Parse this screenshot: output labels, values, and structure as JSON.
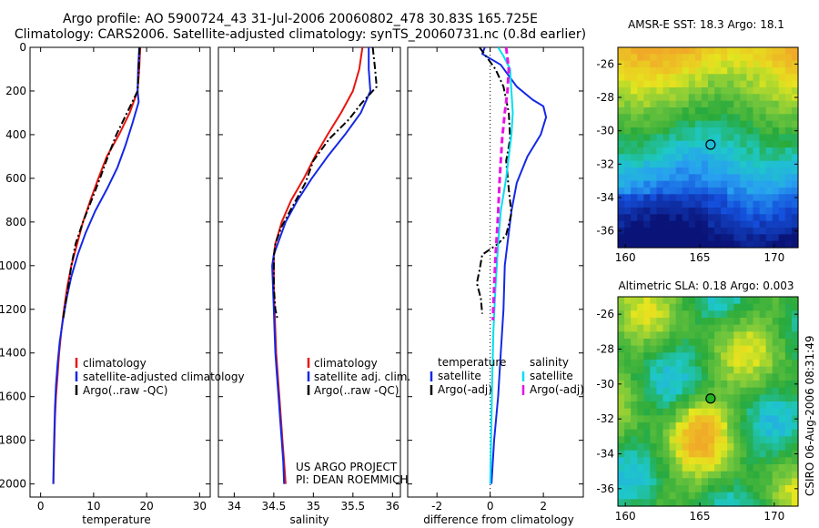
{
  "header": {
    "title_line1": "Argo profile: AO 5900724_43 31-Jul-2006 20060802_478 30.83S 165.725E",
    "title_line2": "Climatology: CARS2006. Satellite-adjusted climatology: synTS_20060731.nc (0.8d earlier)"
  },
  "colors": {
    "climatology": "#e8140f",
    "satellite": "#1428e6",
    "argo": "#000000",
    "salinity_satellite": "#00e0f0",
    "salinity_argo": "#e614e6"
  },
  "credit": {
    "line1": "US ARGO PROJECT",
    "line2": "PI: DEAN ROEMMICH"
  },
  "side_stamp": "CSIRO 06-Aug-2006 08:31:49",
  "chart_data": [
    {
      "type": "line",
      "id": "temperature",
      "xlabel": "temperature",
      "ylabel": "",
      "xlim": [
        -2,
        32
      ],
      "ylim": [
        2060,
        0
      ],
      "y_reversed": true,
      "xticks": [
        0,
        10,
        20,
        30
      ],
      "yticks": [
        0,
        200,
        400,
        600,
        800,
        1000,
        1200,
        1400,
        1600,
        1800,
        2000
      ],
      "legend": [
        "climatology",
        "satellite-adjusted climatology",
        "Argo(..raw -QC)"
      ],
      "legend_position": "lower-right",
      "series": [
        {
          "name": "climatology",
          "style": "solid",
          "color_key": "climatology",
          "points": [
            [
              18.8,
              0
            ],
            [
              18.6,
              100
            ],
            [
              18.3,
              200
            ],
            [
              16.8,
              300
            ],
            [
              14.8,
              400
            ],
            [
              12.5,
              500
            ],
            [
              10.9,
              600
            ],
            [
              9.4,
              700
            ],
            [
              8.0,
              800
            ],
            [
              6.9,
              900
            ],
            [
              5.8,
              1000
            ],
            [
              5.0,
              1100
            ],
            [
              4.4,
              1200
            ],
            [
              3.9,
              1300
            ],
            [
              3.5,
              1400
            ],
            [
              3.2,
              1500
            ],
            [
              2.9,
              1600
            ],
            [
              2.7,
              1700
            ],
            [
              2.6,
              1800
            ],
            [
              2.5,
              1900
            ],
            [
              2.4,
              2000
            ]
          ]
        },
        {
          "name": "satellite-adjusted climatology",
          "style": "solid",
          "color_key": "satellite",
          "points": [
            [
              18.6,
              0
            ],
            [
              18.4,
              100
            ],
            [
              18.3,
              200
            ],
            [
              18.5,
              250
            ],
            [
              17.3,
              350
            ],
            [
              16.0,
              450
            ],
            [
              14.5,
              550
            ],
            [
              12.5,
              650
            ],
            [
              10.3,
              750
            ],
            [
              8.5,
              850
            ],
            [
              7.0,
              950
            ],
            [
              5.8,
              1050
            ],
            [
              4.9,
              1150
            ],
            [
              4.2,
              1250
            ],
            [
              3.6,
              1350
            ],
            [
              3.2,
              1450
            ],
            [
              2.9,
              1550
            ],
            [
              2.7,
              1650
            ],
            [
              2.6,
              1750
            ],
            [
              2.5,
              1850
            ],
            [
              2.4,
              2000
            ]
          ]
        },
        {
          "name": "Argo(..raw -QC)",
          "style": "dashdot",
          "color_key": "argo",
          "points": [
            [
              18.7,
              0
            ],
            [
              18.5,
              100
            ],
            [
              18.3,
              200
            ],
            [
              16.3,
              300
            ],
            [
              14.3,
              400
            ],
            [
              12.7,
              500
            ],
            [
              11.2,
              600
            ],
            [
              9.6,
              700
            ],
            [
              8.0,
              800
            ],
            [
              6.6,
              900
            ],
            [
              5.8,
              1000
            ],
            [
              5.2,
              1100
            ],
            [
              4.5,
              1200
            ],
            [
              4.2,
              1250
            ]
          ]
        }
      ]
    },
    {
      "type": "line",
      "id": "salinity",
      "xlabel": "salinity",
      "ylabel": "",
      "xlim": [
        33.8,
        36.1
      ],
      "ylim": [
        2060,
        0
      ],
      "y_reversed": true,
      "xticks": [
        34,
        34.5,
        35,
        35.5,
        36
      ],
      "legend": [
        "climatology",
        "satellite adj. clim.",
        "Argo(..raw -QC)"
      ],
      "legend_position": "lower-right",
      "series": [
        {
          "name": "climatology",
          "style": "solid",
          "color_key": "climatology",
          "points": [
            [
              35.62,
              0
            ],
            [
              35.58,
              100
            ],
            [
              35.5,
              200
            ],
            [
              35.35,
              300
            ],
            [
              35.18,
              400
            ],
            [
              35.02,
              500
            ],
            [
              34.88,
              600
            ],
            [
              34.72,
              700
            ],
            [
              34.6,
              800
            ],
            [
              34.52,
              900
            ],
            [
              34.5,
              950
            ],
            [
              34.5,
              1000
            ],
            [
              34.5,
              1100
            ],
            [
              34.51,
              1200
            ],
            [
              34.52,
              1300
            ],
            [
              34.53,
              1400
            ],
            [
              34.55,
              1500
            ],
            [
              34.57,
              1600
            ],
            [
              34.59,
              1700
            ],
            [
              34.61,
              1800
            ],
            [
              34.63,
              1900
            ],
            [
              34.65,
              2000
            ]
          ]
        },
        {
          "name": "satellite adj. clim.",
          "style": "solid",
          "color_key": "satellite",
          "points": [
            [
              35.7,
              0
            ],
            [
              35.7,
              100
            ],
            [
              35.72,
              200
            ],
            [
              35.6,
              300
            ],
            [
              35.4,
              400
            ],
            [
              35.18,
              500
            ],
            [
              34.98,
              600
            ],
            [
              34.8,
              700
            ],
            [
              34.65,
              800
            ],
            [
              34.55,
              900
            ],
            [
              34.5,
              950
            ],
            [
              34.48,
              1000
            ],
            [
              34.49,
              1100
            ],
            [
              34.5,
              1200
            ],
            [
              34.51,
              1300
            ],
            [
              34.52,
              1400
            ],
            [
              34.54,
              1500
            ],
            [
              34.56,
              1600
            ],
            [
              34.58,
              1700
            ],
            [
              34.6,
              1800
            ],
            [
              34.62,
              1900
            ],
            [
              34.63,
              2000
            ]
          ]
        },
        {
          "name": "Argo(..raw -QC)",
          "style": "dashdot",
          "color_key": "argo",
          "points": [
            [
              35.75,
              0
            ],
            [
              35.78,
              100
            ],
            [
              35.8,
              180
            ],
            [
              35.6,
              260
            ],
            [
              35.45,
              330
            ],
            [
              35.2,
              420
            ],
            [
              35.0,
              520
            ],
            [
              34.9,
              620
            ],
            [
              34.75,
              720
            ],
            [
              34.6,
              820
            ],
            [
              34.52,
              900
            ],
            [
              34.5,
              960
            ],
            [
              34.5,
              1000
            ],
            [
              34.5,
              1100
            ],
            [
              34.52,
              1200
            ],
            [
              34.55,
              1250
            ]
          ]
        }
      ]
    },
    {
      "type": "line",
      "id": "difference",
      "xlabel": "difference from climatology",
      "ylabel": "",
      "xlim": [
        -3.1,
        3.5
      ],
      "ylim": [
        2060,
        0
      ],
      "y_reversed": true,
      "xticks": [
        -2,
        0,
        2
      ],
      "zero_line": true,
      "legend": [
        "temperature",
        "satellite",
        "Argo(-adj)",
        "salinity",
        "satellite",
        "Argo(-adj)"
      ],
      "legend_position": "lower-center",
      "series": [
        {
          "name": "satellite",
          "group": "temperature",
          "style": "solid",
          "color_key": "satellite",
          "points": [
            [
              -0.2,
              0
            ],
            [
              -0.3,
              30
            ],
            [
              0.4,
              80
            ],
            [
              1.0,
              180
            ],
            [
              1.6,
              240
            ],
            [
              2.0,
              270
            ],
            [
              2.1,
              320
            ],
            [
              1.9,
              400
            ],
            [
              1.4,
              500
            ],
            [
              1.0,
              620
            ],
            [
              0.8,
              750
            ],
            [
              0.7,
              850
            ],
            [
              0.55,
              1000
            ],
            [
              0.5,
              1200
            ],
            [
              0.4,
              1400
            ],
            [
              0.3,
              1600
            ],
            [
              0.15,
              1800
            ],
            [
              0.05,
              2000
            ]
          ]
        },
        {
          "name": "Argo(-adj)",
          "group": "temperature",
          "style": "dashdot",
          "color_key": "argo",
          "points": [
            [
              -0.4,
              0
            ],
            [
              -0.1,
              50
            ],
            [
              0.2,
              100
            ],
            [
              0.5,
              180
            ],
            [
              0.7,
              300
            ],
            [
              0.75,
              420
            ],
            [
              0.6,
              520
            ],
            [
              0.7,
              650
            ],
            [
              0.8,
              760
            ],
            [
              0.6,
              860
            ],
            [
              0.3,
              900
            ],
            [
              -0.3,
              950
            ],
            [
              -0.4,
              1020
            ],
            [
              -0.5,
              1080
            ],
            [
              -0.35,
              1150
            ],
            [
              -0.3,
              1220
            ]
          ]
        },
        {
          "name": "satellite",
          "group": "salinity",
          "style": "solid",
          "color_key": "salinity_satellite",
          "points": [
            [
              0.3,
              0
            ],
            [
              0.5,
              40
            ],
            [
              0.75,
              100
            ],
            [
              0.8,
              200
            ],
            [
              0.85,
              300
            ],
            [
              0.8,
              400
            ],
            [
              0.7,
              500
            ],
            [
              0.6,
              600
            ],
            [
              0.4,
              750
            ],
            [
              0.3,
              900
            ],
            [
              0.2,
              1100
            ],
            [
              0.12,
              1300
            ],
            [
              0.08,
              1500
            ],
            [
              0.05,
              1700
            ],
            [
              0.02,
              1900
            ],
            [
              0.0,
              2000
            ]
          ]
        },
        {
          "name": "Argo(-adj)",
          "group": "salinity",
          "style": "dashed",
          "color_key": "salinity_argo",
          "points": [
            [
              0.6,
              0
            ],
            [
              0.7,
              100
            ],
            [
              0.65,
              200
            ],
            [
              0.55,
              300
            ],
            [
              0.45,
              420
            ],
            [
              0.4,
              520
            ],
            [
              0.35,
              620
            ],
            [
              0.3,
              760
            ],
            [
              0.25,
              860
            ],
            [
              0.2,
              960
            ],
            [
              0.15,
              1100
            ],
            [
              0.1,
              1250
            ]
          ]
        }
      ]
    },
    {
      "type": "heatmap",
      "id": "sst-map",
      "title": "AMSR-E SST: 18.3 Argo: 18.1",
      "xlim": [
        159.5,
        171.6
      ],
      "ylim": [
        -37,
        -25
      ],
      "xticks": [
        160,
        165,
        170
      ],
      "yticks": [
        -26,
        -28,
        -30,
        -32,
        -34,
        -36
      ],
      "marker": {
        "lon": 165.725,
        "lat": -30.83,
        "fill": "none"
      }
    },
    {
      "type": "heatmap",
      "id": "sla-map",
      "title": "Altimetric SLA: 0.18 Argo: 0.003",
      "xlim": [
        159.5,
        171.6
      ],
      "ylim": [
        -37,
        -25
      ],
      "xticks": [
        160,
        165,
        170
      ],
      "yticks": [
        -26,
        -28,
        -30,
        -32,
        -34,
        -36
      ],
      "marker": {
        "lon": 165.725,
        "lat": -30.83,
        "fill": "#22b022"
      }
    }
  ]
}
